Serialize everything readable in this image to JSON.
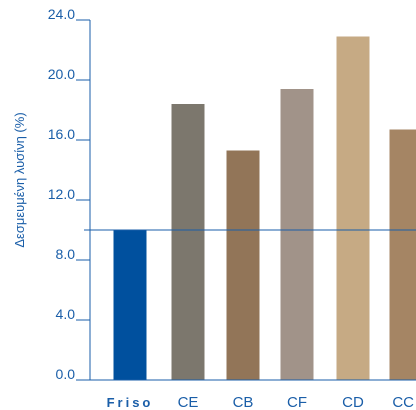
{
  "chart_data": {
    "type": "bar",
    "categories": [
      "Friso",
      "CE",
      "CB",
      "CF",
      "CD",
      "CC"
    ],
    "values": [
      10.0,
      18.4,
      15.3,
      19.4,
      22.9,
      16.7
    ],
    "bar_colors": [
      "#00509e",
      "#7c776d",
      "#927558",
      "#a19389",
      "#c6aa84",
      "#a58564"
    ],
    "ylabel": "Δεσμευμένη λυσίνη (%)",
    "ylim": [
      0,
      24
    ],
    "y_ticks": [
      "0.0",
      "4.0",
      "8.0",
      "12.0",
      "16.0",
      "20.0",
      "24.0"
    ],
    "reference_line": 10.0,
    "grid": false,
    "colors": {
      "axis": "#1a5ea8",
      "text": "#1a5ea8",
      "highlight_label": "#1a5ea8"
    }
  }
}
